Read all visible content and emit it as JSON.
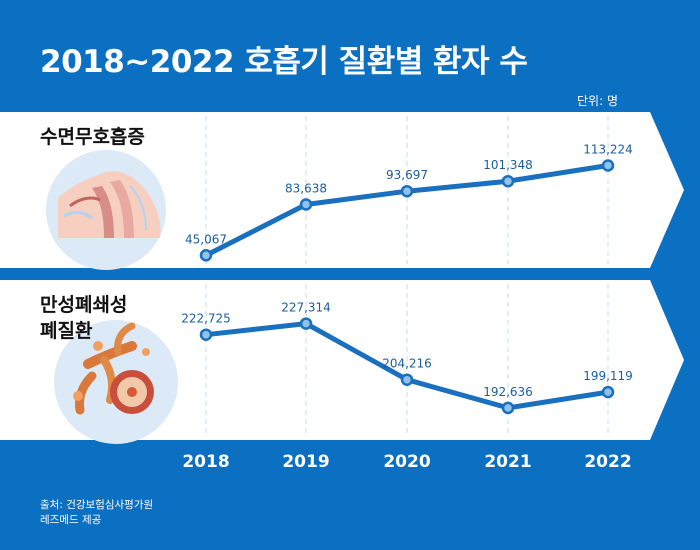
{
  "title": "2018~2022 호흡기 질환별 환자 수",
  "unit_label": "단위: 명",
  "source_line1": "출처: 건강보험심사평가원",
  "source_line2": "레즈메드 제공",
  "colors": {
    "background": "#0b6fc2",
    "panel": "#ffffff",
    "line": "#1a6fbe",
    "marker_fill": "#8fc3ea",
    "illustration_circle": "#dce9f6"
  },
  "chart_data": [
    {
      "type": "line",
      "title": "수면무호흡증",
      "x": [
        "2018",
        "2019",
        "2020",
        "2021",
        "2022"
      ],
      "values": [
        45067,
        83638,
        93697,
        101348,
        113224
      ],
      "value_labels": [
        "45,067",
        "83,638",
        "93,697",
        "101,348",
        "113,224"
      ],
      "ylim": [
        40000,
        125000
      ],
      "grid": "vertical dashed",
      "illustration": "sleep-apnea-airway-illustration"
    },
    {
      "type": "line",
      "title": "만성폐쇄성\n폐질환",
      "title_lines": [
        "만성폐쇄성",
        "폐질환"
      ],
      "x": [
        "2018",
        "2019",
        "2020",
        "2021",
        "2022"
      ],
      "values": [
        222725,
        227314,
        204216,
        192636,
        199119
      ],
      "value_labels": [
        "222,725",
        "227,314",
        "204,216",
        "192,636",
        "199,119"
      ],
      "ylim": [
        186000,
        237000
      ],
      "grid": "vertical dashed",
      "illustration": "lung-bronchi-illustration"
    }
  ]
}
